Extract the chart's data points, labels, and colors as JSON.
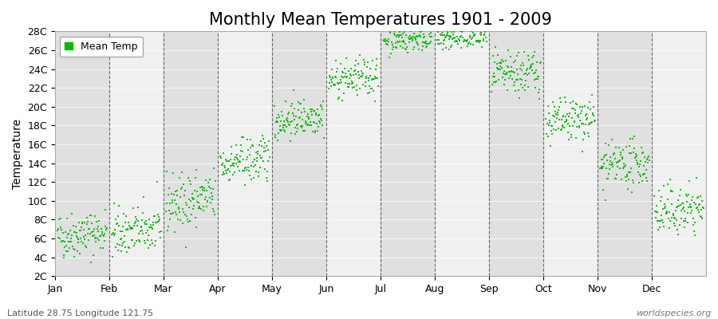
{
  "title": "Monthly Mean Temperatures 1901 - 2009",
  "ylabel": "Temperature",
  "bottom_left_text": "Latitude 28.75 Longitude 121.75",
  "bottom_right_text": "worldspecies.org",
  "legend_label": "Mean Temp",
  "dot_color": "#00BB00",
  "background_color": "#ffffff",
  "band_color_light": "#f0f0f0",
  "band_color_dark": "#e0e0e0",
  "grid_color": "#666666",
  "ylim": [
    2,
    28
  ],
  "ytick_labels": [
    "2C",
    "4C",
    "6C",
    "8C",
    "10C",
    "12C",
    "14C",
    "16C",
    "18C",
    "20C",
    "22C",
    "24C",
    "26C",
    "28C"
  ],
  "ytick_values": [
    2,
    4,
    6,
    8,
    10,
    12,
    14,
    16,
    18,
    20,
    22,
    24,
    26,
    28
  ],
  "months": [
    "Jan",
    "Feb",
    "Mar",
    "Apr",
    "May",
    "Jun",
    "Jul",
    "Aug",
    "Sep",
    "Oct",
    "Nov",
    "Dec"
  ],
  "month_means": [
    6.5,
    6.8,
    10.0,
    14.2,
    18.8,
    23.0,
    27.2,
    27.3,
    23.5,
    18.5,
    13.8,
    9.0
  ],
  "month_stds": [
    1.2,
    1.3,
    1.5,
    1.2,
    1.0,
    1.0,
    0.7,
    0.7,
    1.2,
    1.2,
    1.2,
    1.3
  ],
  "month_trends": [
    0.005,
    0.005,
    0.007,
    0.007,
    0.007,
    0.005,
    0.003,
    0.003,
    0.005,
    0.005,
    0.005,
    0.005
  ],
  "n_years": 109,
  "seed": 42,
  "dot_size": 3,
  "dot_alpha": 0.9,
  "title_fontsize": 15,
  "axis_fontsize": 10,
  "tick_fontsize": 9,
  "legend_fontsize": 9
}
